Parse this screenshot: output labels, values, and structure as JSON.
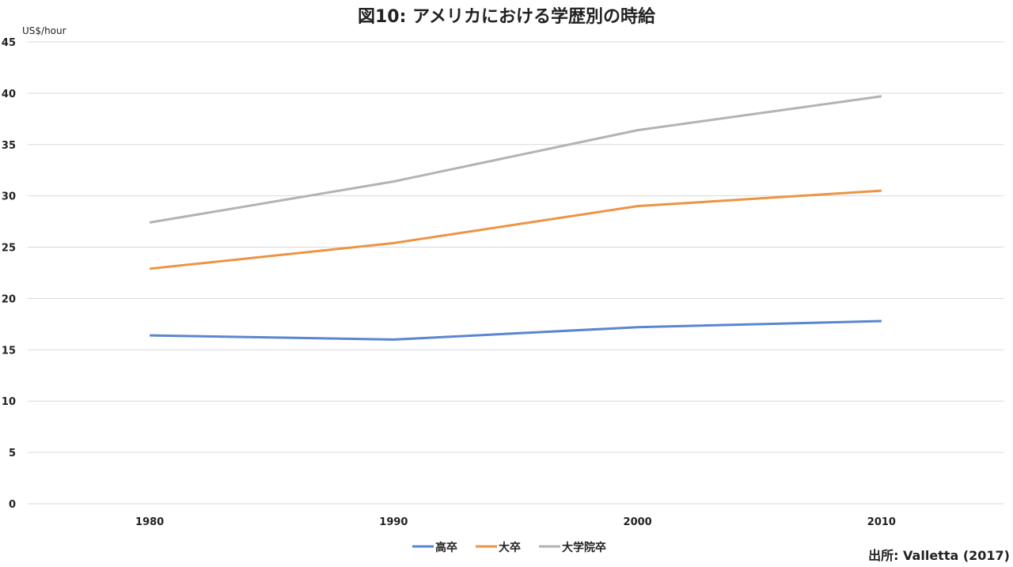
{
  "chart_data": {
    "type": "line",
    "title": "図10: アメリカにおける学歴別の時給",
    "ylabel": "US$/hour",
    "xlabel": "",
    "categories": [
      "1980",
      "1990",
      "2000",
      "2010"
    ],
    "ylim": [
      0,
      45
    ],
    "yticks": [
      0,
      5,
      10,
      15,
      20,
      25,
      30,
      35,
      40,
      45
    ],
    "grid": true,
    "legend_position": "bottom",
    "series": [
      {
        "name": "高卒",
        "color": "#5b86cf",
        "values": [
          16.4,
          16.0,
          17.2,
          17.8
        ]
      },
      {
        "name": "大卒",
        "color": "#ec9443",
        "values": [
          22.9,
          25.4,
          29.0,
          30.5
        ]
      },
      {
        "name": "大学院卒",
        "color": "#b3b3b3",
        "values": [
          27.4,
          31.4,
          36.4,
          39.7
        ]
      }
    ],
    "source": "出所: Valletta (2017)"
  }
}
